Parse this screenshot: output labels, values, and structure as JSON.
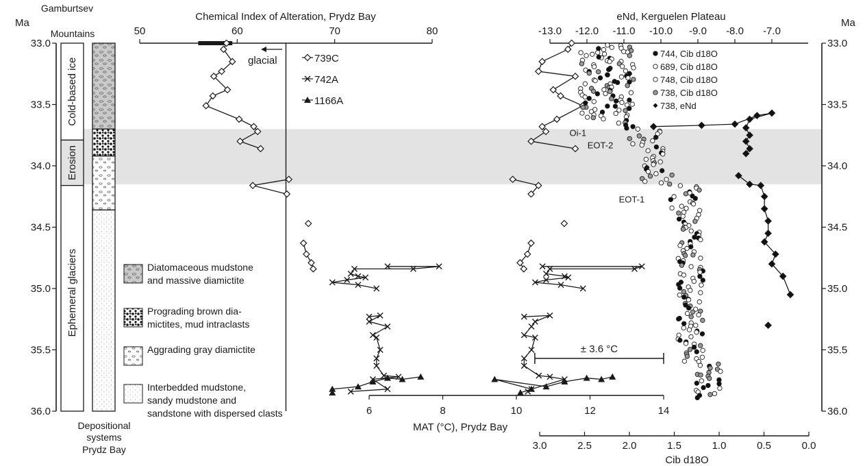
{
  "chart_data": {
    "type": "scatter",
    "age_axis": {
      "label": "Ma",
      "ticks": [
        "33.0",
        "33.5",
        "34.0",
        "34.5",
        "35.0",
        "35.5",
        "36.0"
      ],
      "range": [
        33.0,
        36.0
      ]
    },
    "top_axis_cia": {
      "label": "Chemical Index of Alteration, Prydz Bay",
      "ticks": [
        "50",
        "60",
        "70",
        "80"
      ],
      "range": [
        50,
        82
      ]
    },
    "top_axis_end": {
      "label": "eNd, Kerguelen Plateau",
      "ticks": [
        "-13.0",
        "-12.0",
        "-11.0",
        "-10.0",
        "-9.0",
        "-8.0",
        "-7.0"
      ],
      "range": [
        -13.0,
        -6.4
      ]
    },
    "bottom_axis_mat": {
      "label": "MAT (°C), Prydz Bay",
      "ticks": [
        "6",
        "8",
        "10",
        "12",
        "14"
      ],
      "range": [
        5.2,
        14
      ]
    },
    "bottom_axis_d18o": {
      "label": "Cib d18O",
      "ticks": [
        "3.0",
        "2.5",
        "2.0",
        "1.5",
        "1.0",
        "0.5",
        "0.0"
      ],
      "range": [
        3.0,
        0.0
      ]
    },
    "glacial_line": {
      "value": 65,
      "label": "glacial"
    },
    "glacial_bar": [
      56,
      59.5
    ],
    "error_bar": {
      "label": "± 3.6 °C",
      "mat_range": [
        10.5,
        14
      ]
    },
    "shaded_band": [
      33.7,
      34.15
    ],
    "annotations": [
      {
        "text": "Oi-1",
        "d18o": 2.45,
        "age": 33.73
      },
      {
        "text": "EOT-2",
        "d18o": 2.15,
        "age": 33.83
      },
      {
        "text": "EOT-1",
        "d18o": 1.8,
        "age": 34.27
      }
    ],
    "legend": [
      {
        "label": "739C",
        "marker": "diamond"
      },
      {
        "label": "742A",
        "marker": "cross"
      },
      {
        "label": "1166A",
        "marker": "triangle"
      }
    ],
    "legend_right": [
      {
        "label": "744, Cib d18O",
        "marker": "filled-circle"
      },
      {
        "label": "689, Cib d18O",
        "marker": "open-circle"
      },
      {
        "label": "748, Cib d18O",
        "marker": "open-circle"
      },
      {
        "label": "738, Cib d18O",
        "marker": "gray-circle"
      },
      {
        "label": "738, eNd",
        "marker": "filled-diamond"
      }
    ],
    "series": [
      {
        "name": "739C",
        "axis": "cia",
        "points": [
          [
            58.9,
            33.0
          ],
          [
            58.6,
            33.05
          ],
          [
            59.5,
            33.15
          ],
          [
            58.4,
            33.23
          ],
          [
            57.6,
            33.27
          ],
          [
            59,
            33.38
          ],
          [
            57.5,
            33.43
          ],
          [
            56.8,
            33.51
          ],
          [
            60.2,
            33.62
          ],
          [
            61.7,
            33.68
          ],
          [
            62.1,
            33.72
          ],
          [
            60.3,
            33.8
          ],
          [
            62.4,
            33.86
          ],
          [
            65.3,
            34.11
          ],
          [
            61.6,
            34.16
          ],
          [
            65.1,
            34.23
          ],
          [
            67.3,
            34.47
          ],
          [
            66.8,
            34.63
          ],
          [
            67.1,
            34.72
          ],
          [
            67.6,
            34.79
          ],
          [
            67.8,
            34.84
          ]
        ]
      },
      {
        "name": "739C",
        "axis": "mat",
        "points": [
          [
            11.5,
            33.0
          ],
          [
            11.4,
            33.05
          ],
          [
            10.7,
            33.15
          ],
          [
            10.6,
            33.23
          ],
          [
            11.6,
            33.27
          ],
          [
            11,
            33.38
          ],
          [
            11.2,
            33.43
          ],
          [
            11.8,
            33.51
          ],
          [
            11.1,
            33.62
          ],
          [
            10.7,
            33.68
          ],
          [
            10.8,
            33.72
          ],
          [
            10.4,
            33.8
          ],
          [
            11.6,
            33.86
          ],
          [
            9.9,
            34.11
          ],
          [
            10.6,
            34.16
          ],
          [
            10.4,
            34.23
          ],
          [
            11.3,
            34.47
          ],
          [
            10.4,
            34.63
          ],
          [
            10.3,
            34.72
          ],
          [
            10.1,
            34.79
          ],
          [
            10.2,
            34.84
          ]
        ]
      },
      {
        "name": "742A",
        "axis": "mat",
        "points": [
          [
            6.5,
            34.82
          ],
          [
            7.9,
            34.82
          ],
          [
            7.2,
            34.84
          ],
          [
            5.6,
            34.84
          ],
          [
            5.5,
            34.88
          ],
          [
            5.7,
            34.9
          ],
          [
            5.9,
            34.91
          ],
          [
            5.4,
            34.93
          ],
          [
            5.0,
            34.95
          ],
          [
            5.7,
            34.97
          ],
          [
            6.2,
            35.0
          ],
          [
            6.0,
            35.23
          ],
          [
            6.3,
            35.22
          ],
          [
            6.0,
            35.27
          ],
          [
            6.5,
            35.31
          ],
          [
            6.1,
            35.38
          ],
          [
            6.2,
            35.4
          ],
          [
            6.3,
            35.5
          ],
          [
            6.2,
            35.57
          ],
          [
            6.2,
            35.63
          ],
          [
            6.4,
            35.71
          ],
          [
            6.8,
            35.72
          ],
          [
            6.1,
            35.74
          ],
          [
            6.5,
            35.82
          ],
          [
            5.5,
            35.84
          ]
        ]
      },
      {
        "name": "742A",
        "axis": "mat_r",
        "points": [
          [
            10.3,
            34.82
          ],
          [
            13.0,
            34.82
          ],
          [
            12.8,
            34.84
          ],
          [
            10.5,
            34.84
          ],
          [
            10.4,
            34.88
          ],
          [
            10.9,
            34.9
          ],
          [
            11.0,
            34.91
          ],
          [
            10.4,
            34.93
          ],
          [
            10.1,
            34.95
          ],
          [
            10.8,
            34.97
          ],
          [
            11.4,
            35.0
          ],
          [
            9.8,
            35.23
          ],
          [
            10.5,
            35.22
          ],
          [
            10.1,
            35.27
          ],
          [
            10.0,
            35.31
          ],
          [
            9.8,
            35.38
          ],
          [
            10.1,
            35.4
          ],
          [
            10.0,
            35.5
          ],
          [
            9.8,
            35.57
          ],
          [
            9.8,
            35.63
          ],
          [
            10.2,
            35.71
          ],
          [
            10.5,
            35.72
          ],
          [
            10.9,
            35.74
          ],
          [
            10.0,
            35.82
          ],
          [
            9.9,
            35.84
          ]
        ]
      },
      {
        "name": "1166A",
        "axis": "mat",
        "points": [
          [
            7.4,
            35.72
          ],
          [
            6.9,
            35.74
          ],
          [
            6.5,
            35.73
          ],
          [
            6.1,
            35.76
          ],
          [
            5.7,
            35.8
          ],
          [
            5.0,
            35.82
          ],
          [
            5.0,
            35.85
          ]
        ]
      },
      {
        "name": "1166A",
        "axis": "mat_r",
        "points": [
          [
            12.2,
            35.72
          ],
          [
            11.9,
            35.74
          ],
          [
            11.5,
            35.73
          ],
          [
            10.9,
            35.76
          ],
          [
            10.4,
            35.8
          ],
          [
            9.0,
            35.74
          ],
          [
            10.0,
            35.82
          ],
          [
            9.7,
            35.85
          ]
        ]
      },
      {
        "name": "738, eNd",
        "axis": "end",
        "points": [
          [
            -10.2,
            33.68
          ],
          [
            -8.9,
            33.67
          ],
          [
            -8.0,
            33.66
          ],
          [
            -7.4,
            33.59
          ],
          [
            -7.0,
            33.57
          ],
          [
            -7.6,
            33.62
          ],
          [
            -7.7,
            33.69
          ],
          [
            -7.6,
            33.75
          ],
          [
            -7.7,
            33.8
          ],
          [
            -7.6,
            33.86
          ],
          [
            -7.7,
            33.9
          ],
          [
            -7.9,
            34.08
          ],
          [
            -7.6,
            34.15
          ],
          [
            -7.3,
            34.16
          ],
          [
            -7.2,
            34.25
          ],
          [
            -7.2,
            34.35
          ],
          [
            -7.1,
            34.45
          ],
          [
            -7.1,
            34.55
          ],
          [
            -7.2,
            34.62
          ],
          [
            -6.9,
            34.72
          ],
          [
            -7.0,
            34.8
          ],
          [
            -6.7,
            34.9
          ],
          [
            -6.5,
            35.05
          ],
          [
            -7.1,
            35.3
          ]
        ]
      }
    ]
  }
}
